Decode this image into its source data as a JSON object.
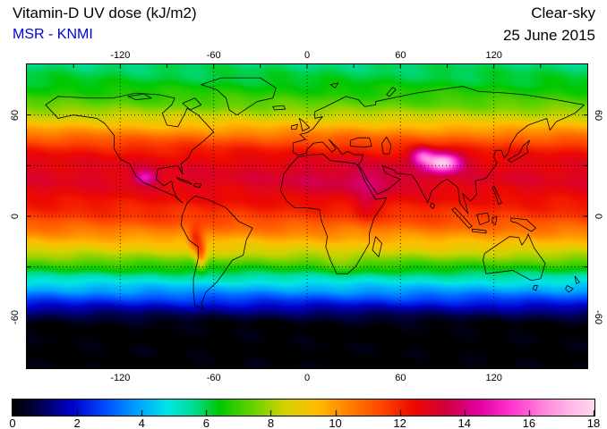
{
  "header": {
    "title": "Vitamin-D UV dose (kJ/m2)",
    "subtitle": "MSR - KNMI",
    "condition": "Clear-sky",
    "date": "25 June 2015"
  },
  "colors": {
    "subtitle": "#0000e0",
    "text": "#000000",
    "background": "#ffffff"
  },
  "chart_data": {
    "type": "heatmap",
    "title": "Vitamin-D UV dose (kJ/m2)",
    "source_label": "MSR - KNMI",
    "condition": "Clear-sky",
    "date": "25 June 2015",
    "units": "kJ/m2",
    "projection": "equirectangular",
    "lon_range": [
      -180,
      180
    ],
    "lat_range": [
      -90,
      90
    ],
    "x_major_ticks": [
      -120,
      -60,
      0,
      60,
      120
    ],
    "x_minor_step": 30,
    "y_major_ticks": [
      60,
      0,
      -60
    ],
    "y_minor_step": 30,
    "grid": {
      "lon_step": 60,
      "lat_step": 30,
      "style": "dotted"
    },
    "colorbar": {
      "min": 0,
      "max": 18,
      "ticks": [
        0,
        2,
        4,
        6,
        8,
        10,
        12,
        14,
        16,
        18
      ]
    },
    "colormap": [
      [
        0.0,
        "#000000"
      ],
      [
        0.8,
        "#00004e"
      ],
      [
        1.8,
        "#0000c8"
      ],
      [
        2.8,
        "#0046ff"
      ],
      [
        3.8,
        "#00a0ff"
      ],
      [
        4.8,
        "#00e6e6"
      ],
      [
        5.6,
        "#00dc96"
      ],
      [
        6.4,
        "#00c800"
      ],
      [
        7.4,
        "#64d200"
      ],
      [
        8.4,
        "#d2d200"
      ],
      [
        9.4,
        "#ffbe00"
      ],
      [
        10.4,
        "#ff8200"
      ],
      [
        11.4,
        "#ff4600"
      ],
      [
        12.4,
        "#ee0a00"
      ],
      [
        13.4,
        "#d2003c"
      ],
      [
        14.4,
        "#e100a0"
      ],
      [
        15.4,
        "#ff32cd"
      ],
      [
        16.4,
        "#ff82dc"
      ],
      [
        17.2,
        "#ffb4e6"
      ],
      [
        18.0,
        "#ffd7f0"
      ]
    ],
    "zonal_profile": [
      [
        90,
        5.8
      ],
      [
        80,
        6.2
      ],
      [
        72,
        6.8
      ],
      [
        65,
        7.5
      ],
      [
        58,
        8.6
      ],
      [
        52,
        9.8
      ],
      [
        46,
        11.0
      ],
      [
        40,
        12.0
      ],
      [
        34,
        12.6
      ],
      [
        27,
        12.9
      ],
      [
        20,
        12.9
      ],
      [
        12,
        12.5
      ],
      [
        5,
        12.0
      ],
      [
        0,
        11.6
      ],
      [
        -6,
        10.9
      ],
      [
        -12,
        10.0
      ],
      [
        -18,
        9.0
      ],
      [
        -24,
        7.9
      ],
      [
        -30,
        6.7
      ],
      [
        -36,
        5.4
      ],
      [
        -42,
        4.2
      ],
      [
        -48,
        3.0
      ],
      [
        -53,
        1.9
      ],
      [
        -57,
        1.1
      ],
      [
        -61,
        0.4
      ],
      [
        -65,
        0.05
      ],
      [
        -70,
        0
      ],
      [
        -90,
        0
      ]
    ],
    "zonal_noise_amp": 0.25,
    "hotspots": [
      {
        "lon": 87,
        "lat": 32,
        "amp": 5.2,
        "slon": 8,
        "slat": 4
      },
      {
        "lon": 74,
        "lat": 36,
        "amp": 3.0,
        "slon": 5,
        "slat": 3.5
      },
      {
        "lon": -104,
        "lat": 23,
        "amp": 2.0,
        "slon": 5,
        "slat": 3
      },
      {
        "lon": -72,
        "lat": -14,
        "amp": 2.2,
        "slon": 3,
        "slat": 5
      },
      {
        "lon": -68,
        "lat": -23,
        "amp": 2.6,
        "slon": 2.5,
        "slat": 6
      },
      {
        "lon": 38,
        "lat": 6,
        "amp": 0.8,
        "slon": 6,
        "slat": 6
      },
      {
        "lon": 15,
        "lat": 20,
        "amp": 0.5,
        "slon": 28,
        "slat": 8
      },
      {
        "lon": 45,
        "lat": 21,
        "amp": 0.6,
        "slon": 12,
        "slat": 7
      },
      {
        "lon": 25,
        "lat": -28,
        "amp": 0.5,
        "slon": 8,
        "slat": 5
      }
    ],
    "coastlines": [
      "M12,24 L20,19 L40,20 L55,20 L70,17 L85,18 L95,20 L93,24 L87,29 L90,36 L97,37 L101,30 L103,26 L110,30 L120,40 L114,45 L110,48 L106,51 L104,55 L99,59 L100,65 L97,60 L90,61 L84,62 L83,68 L88,72 L93,69 L94,74 L97,80 L100,82 L95,78 L85,74 L75,70 L70,66 L66,59 L60,56 L56,50 L56,42 L50,35 L45,32 L30,30 L20,32 Z",
      "M103,82 L108,78 L116,80 L128,85 L136,93 L145,97 L141,104 L139,113 L132,116 L126,124 L122,129 L115,135 L112,142 L114,145 L108,143 L107,135 L107,127 L110,115 L110,108 L104,104 L99,95 L100,89 Z",
      "M135,30 L148,22 L158,20 L160,14 L150,8 L125,8 L112,12 L122,15 L128,20 L130,27 Z",
      "M174,55 L170,59 L165,65 L163,75 L167,81 L172,85 L180,85 L188,86 L189,92 L193,102 L192,108 L195,116 L199,124 L206,124 L211,120 L215,114 L220,106 L220,100 L223,91 L229,83 L231,79 L224,80 L217,69 L214,62 L212,59 L205,58 L195,57 L190,53 L180,54 Z",
      "M224,102 L228,106 L226,114 L222,110 Z",
      "M174.5,54 L171,52 L171,46.5 L179,44.5 L175.5,41.5 L180,40.5 L184,38 L188,33 L190,31 L185,32 L185,28 L192,25 L205,19 L213,21 L217,25 L224,24 L224,22 L250,17 L280,13 L290,16 L308,17 L320,18 L340,21 L358,24 L352,29 L340,34 L336,39 L334,32 L322,36 L315,41 L311,47 L309,53 L306.5,55.5 L305,51 L301,51 L300,55 L302,58.5 L295,67.5 L288,69 L289,77 L285,81 L280,76.5 L283.5,88.5 L278,82 L277,73 L270,68 L266,70 L260,75 L257.5,82 L253,74 L250,69 L248,66.5 L247,65.5 L237,64.5 L236.5,63 L228.5,60 L230,64 L234,66 L240,68 L232,74 L225,77 L223,74 L219,69 L215,62 L212.5,60 L215,57 L216,53.5 L210,53.5 L206,51.5 L202.5,53.5 L200,50 L194,44.5 L198.5,50 L196,52 L190,46 L184,46.7 L180,50.5 L179.5,52.5 Z",
      "M208,45 L213,43.5 L220,43.5 L221.5,48.5 L216,49 L208,48.5 Z",
      "M231,43 L234,48 L233,53 L229,53 L228,47 Z",
      "M175,32 L178,34 L181.5,37.5 L177,39.5 L176,35 Z",
      "M170,36.5 L174,35.5 L173,38.5 L170,38.5 Z",
      "M158,25 L165,24.5 L166,26.5 L159,27 Z",
      "M323,45 L321,49 L322,52 L317,55 L311,58 L309,56.5 L316,53 L319,48 Z",
      "M300,72 L302,76 L305,82 L303,83 L301,77 L299,73 Z",
      "M289,89 L296,88 L297,93 L291,95 Z",
      "M275,85 L281,91 L286,96 L284,97 L278,91 L273,86 Z",
      "M286,97.5 L295,98.5 L295,100 L286,99 Z",
      "M299,91 L302,90 L301,95 L299,94 Z",
      "M311,91 L321,92 L327,97 L324,99 L315,94 L311,93 Z",
      "M294,112 L302,107 L310,102 L316,102.5 L318,107 L321,103 L322,100.5 L326,109 L330,114 L333,118 L330,127 L324,128 L320,126 L312,122 L304,123 L295,124 L293,116 Z",
      "M326,131 L328,131 L327,134 L325,133 Z",
      "M352,125.5 L355,129 L353,130 Z M347,131 L351,133 L348,135 L346,133 Z",
      "M260,82 L262,83.5 L261,85.5 L259,84 Z",
      "M96,67 L104,69.5 L106,71 L98,68.5 Z",
      "M108,70.5 L112,71 L111,73 L107,72 Z",
      "M105,27 L112,24 L108,20 L100,23 Z",
      "M70,21 L80,20 L75,17.5 L65,19 Z",
      "M233,19 L237,15 L235,13.5 L231,18 Z",
      "M195,12 L200,11 L198,14 Z"
    ]
  }
}
